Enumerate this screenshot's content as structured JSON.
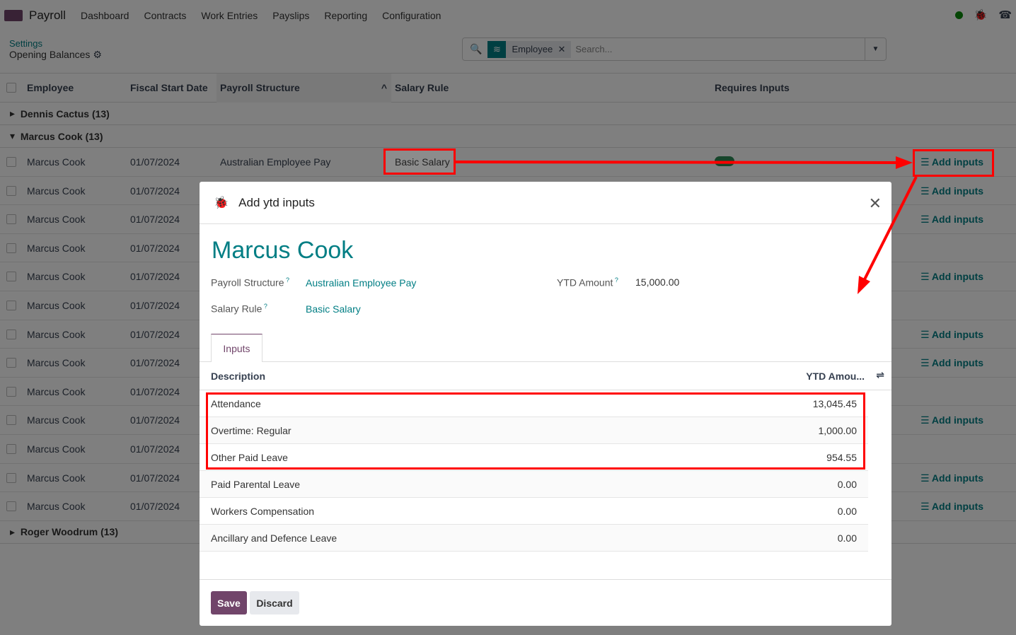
{
  "nav": {
    "app": "Payroll",
    "items": [
      "Dashboard",
      "Contracts",
      "Work Entries",
      "Payslips",
      "Reporting",
      "Configuration"
    ]
  },
  "breadcrumb": {
    "parent": "Settings",
    "current": "Opening Balances"
  },
  "search": {
    "facet": "Employee",
    "placeholder": "Search..."
  },
  "columns": [
    "Employee",
    "Fiscal Start Date",
    "Payroll Structure",
    "Salary Rule",
    "Requires Inputs"
  ],
  "groups": [
    {
      "label": "Dennis Cactus (13)",
      "open": false
    },
    {
      "label": "Marcus Cook (13)",
      "open": true
    },
    {
      "label": "Roger Woodrum (13)",
      "open": false
    }
  ],
  "rows": {
    "employee": "Marcus Cook",
    "date": "01/07/2024",
    "structure": "Australian Employee Pay",
    "first_rule": "Basic Salary",
    "add_label": "Add inputs",
    "add_visible": [
      true,
      true,
      true,
      false,
      true,
      false,
      true,
      true,
      false,
      true,
      false,
      true,
      true
    ]
  },
  "modal": {
    "title": "Add ytd inputs",
    "employee": "Marcus Cook",
    "structure_label": "Payroll Structure",
    "structure": "Australian Employee Pay",
    "rule_label": "Salary Rule",
    "rule": "Basic Salary",
    "ytd_label": "YTD Amount",
    "ytd": "15,000.00",
    "tab": "Inputs",
    "col_desc": "Description",
    "col_amt": "YTD Amou...",
    "lines": [
      [
        "Attendance",
        "13,045.45"
      ],
      [
        "Overtime: Regular",
        "1,000.00"
      ],
      [
        "Other Paid Leave",
        "954.55"
      ],
      [
        "Paid Parental Leave",
        "0.00"
      ],
      [
        "Workers Compensation",
        "0.00"
      ],
      [
        "Ancillary and Defence Leave",
        "0.00"
      ]
    ],
    "save": "Save",
    "discard": "Discard"
  },
  "colors": {
    "accent": "#017e84",
    "brand": "#71456a",
    "annotation": "#ff0000"
  }
}
